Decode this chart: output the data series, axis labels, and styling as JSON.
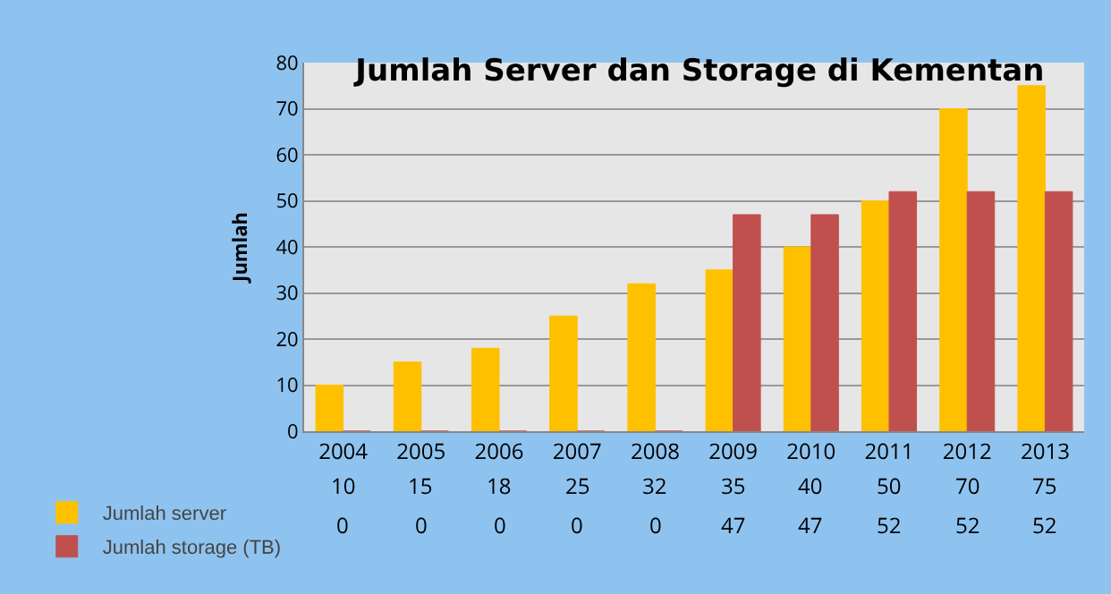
{
  "chart_data": {
    "type": "bar",
    "title": "Jumlah Server dan Storage di Kementan",
    "ylabel": "Jumlah",
    "categories": [
      "2004",
      "2005",
      "2006",
      "2007",
      "2008",
      "2009",
      "2010",
      "2011",
      "2012",
      "2013"
    ],
    "series": [
      {
        "name": "Jumlah server",
        "color": "#ffc000",
        "values": [
          10,
          15,
          18,
          25,
          32,
          35,
          40,
          50,
          70,
          75
        ]
      },
      {
        "name": "Jumlah storage (TB)",
        "color": "#c0504d",
        "values": [
          0,
          0,
          0,
          0,
          0,
          47,
          47,
          52,
          52,
          52
        ]
      }
    ],
    "ylim": [
      0,
      80
    ],
    "yticks": [
      0,
      10,
      20,
      30,
      40,
      50,
      60,
      70,
      80
    ],
    "grid": "y",
    "legend": "bottom left",
    "data_labels": true
  }
}
